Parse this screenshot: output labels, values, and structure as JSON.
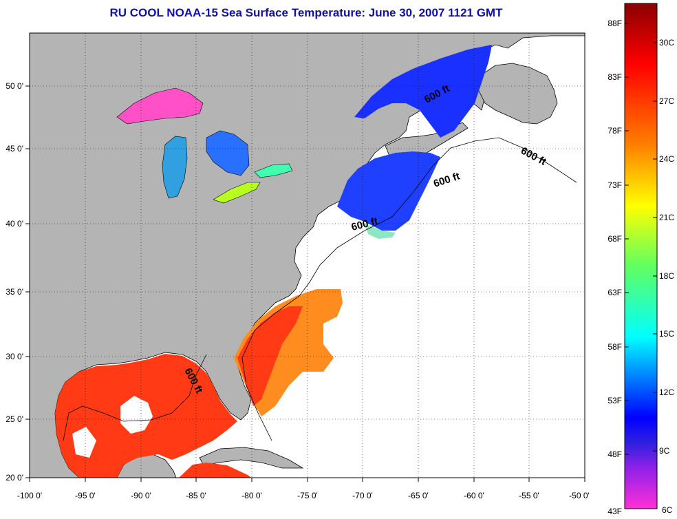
{
  "title": "RU COOL  NOAA-15  Sea Surface Temperature:  June 30, 2007 1121 GMT",
  "map": {
    "lon_ticks": [
      "-100 0'",
      "-95 0'",
      "-90 0'",
      "-85 0'",
      "-80 0'",
      "-75 0'",
      "-70 0'",
      "-65 0'",
      "-60 0'",
      "-55 0'",
      "-50 0'"
    ],
    "lat_ticks": [
      "50 0'",
      "45 0'",
      "40 0'",
      "35 0'",
      "30 0'",
      "25 0'",
      "20 0'"
    ],
    "lon_range": [
      -100,
      -50
    ],
    "lat_range": [
      20,
      52.5
    ],
    "contour_labels": [
      "600 ft",
      "600 ft",
      "600 ft",
      "600 ft",
      "600 ft"
    ],
    "colors": {
      "land": "#b4b4b4",
      "no_data": "#ffffff",
      "warm_water": "#ff3a14",
      "gulf_stream_edge": "#ff8c1e",
      "cold_water": "#2040ff",
      "lake_superior": "#ff50c8"
    }
  },
  "colorbar": {
    "fahrenheit": [
      "88F",
      "83F",
      "78F",
      "73F",
      "68F",
      "63F",
      "58F",
      "53F",
      "48F",
      "43F"
    ],
    "celsius": [
      "30C",
      "27C",
      "24C",
      "21C",
      "18C",
      "15C",
      "12C",
      "9C",
      "6C"
    ],
    "stops": [
      "#8b0000",
      "#ff0000",
      "#ff7f00",
      "#ffff00",
      "#00ff7f",
      "#00ffff",
      "#0000ff",
      "#7f00ff",
      "#ff00ff"
    ]
  }
}
